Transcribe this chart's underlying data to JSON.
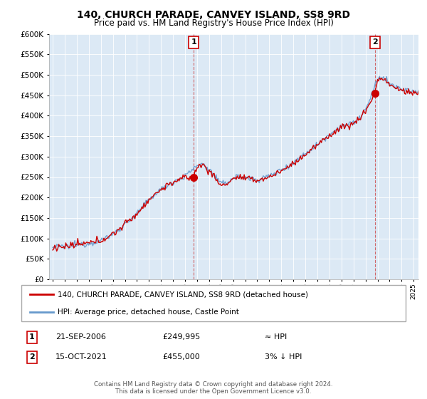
{
  "title": "140, CHURCH PARADE, CANVEY ISLAND, SS8 9RD",
  "subtitle": "Price paid vs. HM Land Registry's House Price Index (HPI)",
  "ylim": [
    0,
    600000
  ],
  "yticks": [
    0,
    50000,
    100000,
    150000,
    200000,
    250000,
    300000,
    350000,
    400000,
    450000,
    500000,
    550000,
    600000
  ],
  "xlim_start": 1994.7,
  "xlim_end": 2025.4,
  "sale1_x": 2006.72,
  "sale1_y": 249995,
  "sale1_label": "1",
  "sale2_x": 2021.79,
  "sale2_y": 455000,
  "sale2_label": "2",
  "line_color_red": "#cc0000",
  "line_color_blue": "#6699cc",
  "marker_color": "#cc0000",
  "background_color": "#ffffff",
  "plot_bg_color": "#dce9f5",
  "grid_color": "#ffffff",
  "legend_line1": "140, CHURCH PARADE, CANVEY ISLAND, SS8 9RD (detached house)",
  "legend_line2": "HPI: Average price, detached house, Castle Point",
  "annotation1_date": "21-SEP-2006",
  "annotation1_price": "£249,995",
  "annotation1_hpi": "≈ HPI",
  "annotation2_date": "15-OCT-2021",
  "annotation2_price": "£455,000",
  "annotation2_hpi": "3% ↓ HPI",
  "footer": "Contains HM Land Registry data © Crown copyright and database right 2024.\nThis data is licensed under the Open Government Licence v3.0."
}
